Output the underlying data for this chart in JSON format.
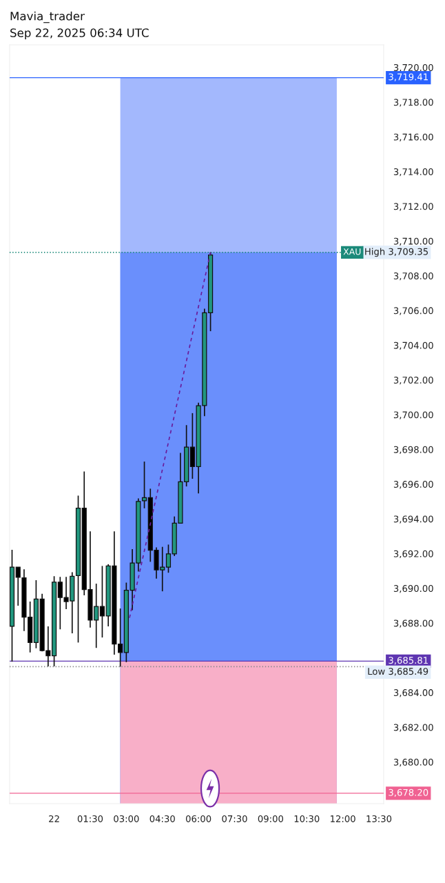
{
  "chart_data": {
    "type": "candlestick",
    "title": "Mavia_trader",
    "subtitle": "Sep 22, 2025 06:34 UTC",
    "annotations": [
      "XAU"
    ],
    "x": [
      "2025-09-21T22:15",
      "2025-09-21T22:30",
      "2025-09-21T22:45",
      "2025-09-21T23:00",
      "2025-09-21T23:15",
      "2025-09-21T23:30",
      "2025-09-21T23:45",
      "2025-09-22T00:00",
      "2025-09-22T00:15",
      "2025-09-22T00:30",
      "2025-09-22T00:45",
      "2025-09-22T01:00",
      "2025-09-22T01:15",
      "2025-09-22T01:30",
      "2025-09-22T01:45",
      "2025-09-22T02:00",
      "2025-09-22T02:15",
      "2025-09-22T02:30",
      "2025-09-22T02:45",
      "2025-09-22T03:00",
      "2025-09-22T03:15",
      "2025-09-22T03:30",
      "2025-09-22T03:45",
      "2025-09-22T04:00",
      "2025-09-22T04:15",
      "2025-09-22T04:30",
      "2025-09-22T04:45",
      "2025-09-22T05:00",
      "2025-09-22T05:15",
      "2025-09-22T05:30",
      "2025-09-22T05:45",
      "2025-09-22T06:00",
      "2025-09-22T06:15",
      "2025-09-22T06:30"
    ],
    "ohlc": [
      [
        3687.81,
        3692.22,
        3685.78,
        3691.22
      ],
      [
        3691.22,
        3691.22,
        3689.0,
        3690.64
      ],
      [
        3690.61,
        3691.1,
        3687.54,
        3688.34
      ],
      [
        3688.34,
        3689.24,
        3686.31,
        3686.88
      ],
      [
        3686.88,
        3690.47,
        3686.55,
        3689.38
      ],
      [
        3689.38,
        3689.69,
        3686.37,
        3686.41
      ],
      [
        3686.41,
        3687.81,
        3685.51,
        3686.12
      ],
      [
        3686.12,
        3690.7,
        3685.51,
        3690.36
      ],
      [
        3690.36,
        3690.66,
        3687.64,
        3689.47
      ],
      [
        3689.47,
        3690.66,
        3688.8,
        3689.24
      ],
      [
        3689.27,
        3690.93,
        3687.41,
        3690.7
      ],
      [
        3690.73,
        3695.34,
        3686.88,
        3694.62
      ],
      [
        3694.62,
        3696.73,
        3689.6,
        3689.93
      ],
      [
        3689.93,
        3693.28,
        3687.74,
        3688.17
      ],
      [
        3688.17,
        3690.27,
        3686.57,
        3688.96
      ],
      [
        3688.96,
        3691.29,
        3687.17,
        3688.41
      ],
      [
        3688.41,
        3691.39,
        3687.81,
        3691.29
      ],
      [
        3691.29,
        3693.28,
        3686.18,
        3686.79
      ],
      [
        3686.79,
        3688.84,
        3685.49,
        3686.31
      ],
      [
        3686.31,
        3690.33,
        3685.75,
        3689.89
      ],
      [
        3689.89,
        3692.26,
        3688.74,
        3691.46
      ],
      [
        3691.46,
        3695.18,
        3690.97,
        3695.01
      ],
      [
        3695.05,
        3697.3,
        3694.61,
        3695.22
      ],
      [
        3695.22,
        3695.74,
        3691.53,
        3692.19
      ],
      [
        3692.19,
        3692.36,
        3690.56,
        3691.06
      ],
      [
        3691.06,
        3692.39,
        3689.83,
        3691.22
      ],
      [
        3691.22,
        3692.52,
        3690.9,
        3691.99
      ],
      [
        3691.99,
        3694.14,
        3691.86,
        3693.75
      ],
      [
        3693.75,
        3697.8,
        3693.75,
        3696.14
      ],
      [
        3696.14,
        3699.4,
        3695.87,
        3698.13
      ],
      [
        3698.13,
        3700.09,
        3696.31,
        3697.01
      ],
      [
        3697.01,
        3700.69,
        3695.47,
        3700.52
      ],
      [
        3700.53,
        3706.1,
        3699.92,
        3705.87
      ],
      [
        3705.87,
        3709.35,
        3704.81,
        3709.2
      ]
    ],
    "colors": [
      "#22977f",
      "#000000",
      "#000000",
      "#000000",
      "#22977f",
      "#000000",
      "#000000",
      "#22977f",
      "#000000",
      "#000000",
      "#22977f",
      "#22977f",
      "#000000",
      "#000000",
      "#22977f",
      "#000000",
      "#22977f",
      "#000000",
      "#000000",
      "#22977f",
      "#22977f",
      "#22977f",
      "#22977f",
      "#000000",
      "#000000",
      "#22977f",
      "#22977f",
      "#22977f",
      "#22977f",
      "#22977f",
      "#000000",
      "#22977f",
      "#22977f",
      "#22977f"
    ],
    "series": [
      {
        "type": "area",
        "color": "#a3b8fd",
        "x": [
          "2025-09-22T02:45",
          "2025-09-22T11:45"
        ],
        "values": [
          3719.41,
          3719.41
        ]
      },
      {
        "type": "area",
        "color": "#6a8ffc",
        "x": [
          "2025-09-22T02:45",
          "2025-09-22T11:45"
        ],
        "values": [
          3709.35,
          3709.35
        ]
      },
      {
        "type": "area",
        "color": "#f8afc8",
        "x": [
          "2025-09-22T02:45",
          "2025-09-22T11:45"
        ],
        "values": [
          3685.81,
          3685.81
        ]
      },
      {
        "type": "line",
        "color": "#6a1b9a",
        "line_style": "dashed",
        "x": [
          "2025-09-22T03:08",
          "2025-09-22T06:30"
        ],
        "values": [
          3688.3,
          3709.35
        ]
      }
    ],
    "ref_lines": [
      {
        "axis": "y",
        "value": 3719.41,
        "label": "3,719.41",
        "color": "#2962ff",
        "line_style": "solid"
      },
      {
        "axis": "y",
        "value": 3709.35,
        "label": "High 3,709.35",
        "color": "#1b8a7a",
        "line_style": "dotted"
      },
      {
        "axis": "y",
        "value": 3685.81,
        "label": "3,685.81",
        "color": "#5e35b1",
        "line_style": "solid"
      },
      {
        "axis": "y",
        "value": 3685.49,
        "label": "Low 3,685.49",
        "color": "#888888",
        "line_style": "dotted"
      },
      {
        "axis": "y",
        "value": 3678.2,
        "label": "3,678.20",
        "color": "#f06292",
        "line_style": "solid"
      }
    ],
    "xlim": [
      "2025-09-21T22:09",
      "2025-09-22T13:42"
    ],
    "ylim": [
      3677.6,
      3721.3
    ],
    "xticks": [
      {
        "value": "2025-09-22T00:00",
        "label": "22"
      },
      {
        "value": "2025-09-22T01:30",
        "label": "01:30"
      },
      {
        "value": "2025-09-22T03:00",
        "label": "03:00"
      },
      {
        "value": "2025-09-22T04:30",
        "label": "04:30"
      },
      {
        "value": "2025-09-22T06:00",
        "label": "06:00"
      },
      {
        "value": "2025-09-22T07:30",
        "label": "07:30"
      },
      {
        "value": "2025-09-22T09:00",
        "label": "09:00"
      },
      {
        "value": "2025-09-22T10:30",
        "label": "10:30"
      },
      {
        "value": "2025-09-22T12:00",
        "label": "12:00"
      },
      {
        "value": "2025-09-22T13:30",
        "label": "13:30"
      }
    ],
    "yticks": [
      {
        "value": 3680,
        "label": "3,680.00"
      },
      {
        "value": 3682,
        "label": "3,682.00"
      },
      {
        "value": 3684,
        "label": "3,684.00"
      },
      {
        "value": 3688,
        "label": "3,688.00"
      },
      {
        "value": 3690,
        "label": "3,690.00"
      },
      {
        "value": 3692,
        "label": "3,692.00"
      },
      {
        "value": 3694,
        "label": "3,694.00"
      },
      {
        "value": 3696,
        "label": "3,696.00"
      },
      {
        "value": 3698,
        "label": "3,698.00"
      },
      {
        "value": 3700,
        "label": "3,700.00"
      },
      {
        "value": 3702,
        "label": "3,702.00"
      },
      {
        "value": 3704,
        "label": "3,704.00"
      },
      {
        "value": 3706,
        "label": "3,706.00"
      },
      {
        "value": 3708,
        "label": "3,708.00"
      },
      {
        "value": 3710,
        "label": "3,710.00"
      },
      {
        "value": 3712,
        "label": "3,712.00"
      },
      {
        "value": 3714,
        "label": "3,714.00"
      },
      {
        "value": 3716,
        "label": "3,716.00"
      },
      {
        "value": 3718,
        "label": "3,718.00"
      },
      {
        "value": 3720,
        "label": "3,720.00"
      }
    ],
    "grid": false,
    "legend": false
  }
}
